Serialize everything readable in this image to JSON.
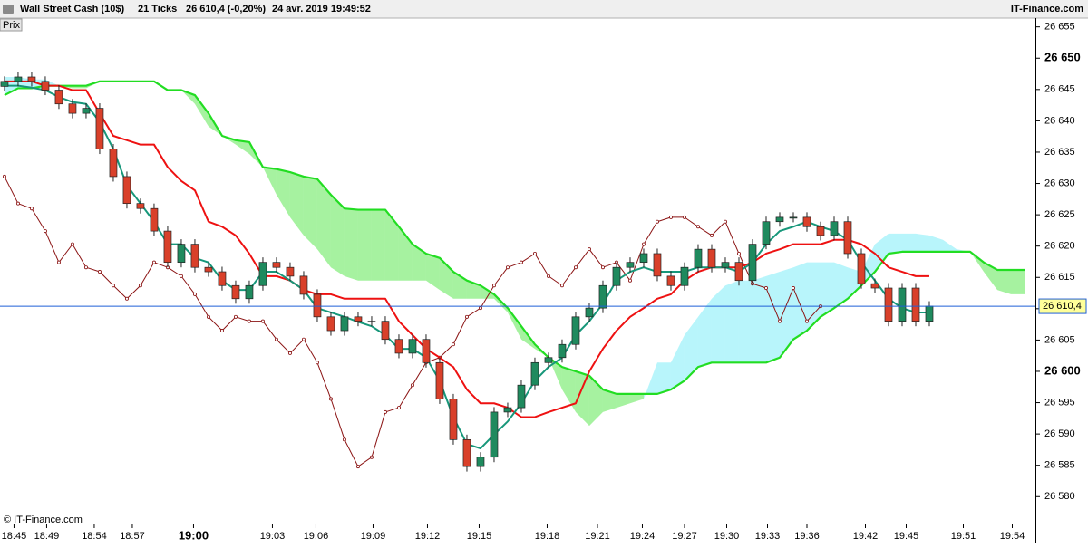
{
  "header": {
    "instrument": "Wall Street Cash (10$)",
    "interval": "21 Ticks",
    "quote": "26 610,4 (-0,20%)",
    "datetime": "24 avr. 2019 19:49:52",
    "brand": "IT-Finance.com",
    "panel": "Prix",
    "copyright": "© IT-Finance.com"
  },
  "chart_data": {
    "type": "candlestick",
    "xlim": [
      -0.33,
      75.8
    ],
    "xticks": [
      {
        "value": 0.7,
        "label": "18:45"
      },
      {
        "value": 3.1,
        "label": "18:49"
      },
      {
        "value": 6.6,
        "label": "18:54"
      },
      {
        "value": 9.4,
        "label": "18:57"
      },
      {
        "value": 13.9,
        "label": "19:00",
        "bold": true
      },
      {
        "value": 19.7,
        "label": "19:03"
      },
      {
        "value": 22.9,
        "label": "19:06"
      },
      {
        "value": 27.1,
        "label": "19:09"
      },
      {
        "value": 31.1,
        "label": "19:12"
      },
      {
        "value": 34.9,
        "label": "19:15"
      },
      {
        "value": 39.9,
        "label": "19:18"
      },
      {
        "value": 43.6,
        "label": "19:21"
      },
      {
        "value": 46.9,
        "label": "19:24"
      },
      {
        "value": 50,
        "label": "19:27"
      },
      {
        "value": 53.1,
        "label": "19:30"
      },
      {
        "value": 56.1,
        "label": "19:33"
      },
      {
        "value": 59,
        "label": "19:36"
      },
      {
        "value": 63.3,
        "label": "19:42"
      },
      {
        "value": 66.3,
        "label": "19:45"
      },
      {
        "value": 70.5,
        "label": "19:51"
      },
      {
        "value": 74.1,
        "label": "19:54"
      }
    ],
    "ylim": [
      26575.7,
      26656.4
    ],
    "yticks": [
      {
        "value": 26580,
        "label": "26 580"
      },
      {
        "value": 26585,
        "label": "26 585"
      },
      {
        "value": 26590,
        "label": "26 590"
      },
      {
        "value": 26595,
        "label": "26 595"
      },
      {
        "value": 26600,
        "label": "26 600",
        "bold": true
      },
      {
        "value": 26605,
        "label": "26 605"
      },
      {
        "value": 26610,
        "label": "26 610"
      },
      {
        "value": 26615,
        "label": "26 615"
      },
      {
        "value": 26620,
        "label": "26 620"
      },
      {
        "value": 26625,
        "label": "26 625"
      },
      {
        "value": 26630,
        "label": "26 630"
      },
      {
        "value": 26635,
        "label": "26 635"
      },
      {
        "value": 26640,
        "label": "26 640"
      },
      {
        "value": 26645,
        "label": "26 645"
      },
      {
        "value": 26650,
        "label": "26 650",
        "bold": true
      },
      {
        "value": 26655,
        "label": "26 655"
      }
    ],
    "last_price": {
      "value": 26610.4,
      "label": "26 610,4",
      "color": "#1f5fd6"
    },
    "candles": {
      "up_color": "#1f8a5e",
      "down_color": "#d9402a",
      "open": [
        26645.5,
        26646.3,
        26647.0,
        26646.3,
        26644.9,
        26642.7,
        26641.2,
        26642.0,
        26635.5,
        26631.1,
        26626.8,
        26626.0,
        26622.4,
        26617.4,
        26620.3,
        26616.6,
        26615.9,
        26613.7,
        26611.6,
        26613.7,
        26617.4,
        26616.6,
        26615.2,
        26612.3,
        26608.7,
        26606.5,
        26608.7,
        26608.0,
        26608.0,
        26605.1,
        26602.9,
        26605.1,
        26601.4,
        26595.6,
        26589.1,
        26584.8,
        26586.3,
        26593.5,
        26594.2,
        26597.8,
        26601.4,
        26602.2,
        26604.3,
        26608.7,
        26610.1,
        26613.7,
        26616.6,
        26617.4,
        26618.8,
        26615.2,
        26613.7,
        26616.6,
        26619.5,
        26616.6,
        26617.4,
        26614.5,
        26620.3,
        26623.9,
        26624.6,
        26624.6,
        26623.1,
        26621.7,
        26623.9,
        26618.8,
        26614.0,
        26613.3,
        26608.0,
        26613.3,
        26608.0
      ],
      "high": [
        26647.1,
        26647.8,
        26647.8,
        26647.1,
        26645.7,
        26643.5,
        26642.8,
        26642.8,
        26636.3,
        26631.9,
        26627.6,
        26626.8,
        26623.2,
        26621.1,
        26621.1,
        26617.4,
        26616.7,
        26614.5,
        26614.5,
        26618.2,
        26618.2,
        26617.4,
        26616.0,
        26613.1,
        26609.5,
        26609.5,
        26609.5,
        26608.8,
        26608.8,
        26605.9,
        26605.9,
        26605.9,
        26602.2,
        26596.4,
        26589.9,
        26587.1,
        26594.3,
        26595.0,
        26598.6,
        26602.2,
        26603.0,
        26605.1,
        26609.5,
        26610.9,
        26614.5,
        26617.4,
        26618.2,
        26619.6,
        26619.6,
        26616.0,
        26617.4,
        26620.3,
        26620.3,
        26618.2,
        26618.2,
        26621.1,
        26624.7,
        26625.4,
        26625.4,
        26625.4,
        26623.9,
        26624.7,
        26624.7,
        26619.6,
        26614.8,
        26614.1,
        26614.1,
        26614.1,
        26611.2
      ],
      "low": [
        26644.7,
        26645.5,
        26645.5,
        26644.1,
        26641.9,
        26640.4,
        26640.4,
        26634.7,
        26630.3,
        26626.0,
        26625.2,
        26621.6,
        26616.6,
        26616.6,
        26615.8,
        26615.1,
        26612.9,
        26610.8,
        26610.8,
        26612.9,
        26615.8,
        26614.4,
        26611.5,
        26607.9,
        26605.7,
        26605.7,
        26607.2,
        26607.2,
        26604.3,
        26602.1,
        26602.1,
        26600.6,
        26594.8,
        26588.3,
        26584.0,
        26584.0,
        26585.5,
        26592.7,
        26593.4,
        26597.0,
        26600.6,
        26601.4,
        26603.5,
        26607.9,
        26609.3,
        26612.9,
        26615.8,
        26616.6,
        26614.4,
        26612.9,
        26612.9,
        26615.8,
        26615.8,
        26615.8,
        26613.7,
        26613.7,
        26619.5,
        26623.1,
        26623.8,
        26622.3,
        26620.9,
        26620.9,
        26618.0,
        26613.2,
        26612.5,
        26607.2,
        26607.2,
        26607.2,
        26607.2
      ],
      "close": [
        26646.3,
        26647.0,
        26646.3,
        26644.9,
        26642.7,
        26641.2,
        26642.0,
        26635.5,
        26631.1,
        26626.8,
        26626.0,
        26622.4,
        26617.4,
        26620.3,
        26616.6,
        26615.9,
        26613.7,
        26611.6,
        26613.7,
        26617.4,
        26616.6,
        26615.2,
        26612.3,
        26608.7,
        26606.5,
        26608.7,
        26608.0,
        26608.0,
        26605.1,
        26602.9,
        26605.1,
        26601.4,
        26595.6,
        26589.1,
        26584.8,
        26586.3,
        26593.5,
        26594.2,
        26597.8,
        26601.4,
        26602.2,
        26604.3,
        26608.7,
        26610.1,
        26613.7,
        26616.6,
        26617.4,
        26618.8,
        26615.2,
        26613.7,
        26616.6,
        26619.5,
        26616.6,
        26617.4,
        26614.5,
        26620.3,
        26623.9,
        26624.6,
        26624.6,
        26623.1,
        26621.7,
        26623.9,
        26618.8,
        26614.0,
        26613.3,
        26608.0,
        26613.3,
        26608.0,
        26610.4
      ]
    },
    "cloud_colors": {
      "up": "#a6f2a0",
      "down": "#b8f5fb"
    },
    "senkou_a": {
      "color": "#22dd22",
      "values": [
        26644.1,
        26645.2,
        26645.2,
        26645.6,
        26645.6,
        26645.6,
        26645.6,
        26646.3,
        26646.3,
        26646.3,
        26646.3,
        26646.3,
        26644.9,
        26644.9,
        26644.1,
        26641.2,
        26637.6,
        26636.9,
        26636.6,
        26632.6,
        26632.3,
        26631.8,
        26631.1,
        26630.7,
        26628.2,
        26626.0,
        26625.8,
        26625.8,
        26625.8,
        26623.1,
        26620.3,
        26618.8,
        26618.1,
        26615.9,
        26614.5,
        26613.7,
        26612.3,
        26610.1,
        26607.2,
        26604.3,
        26602.2,
        26600.7,
        26600.0,
        26599.3,
        26597.1,
        26596.4,
        26596.4,
        26596.4,
        26596.4,
        26597.1,
        26598.5,
        26600.7,
        26601.4,
        26601.4,
        26601.4,
        26601.4,
        26601.4,
        26602.2,
        26605.1,
        26606.5,
        26608.7,
        26610.1,
        26611.6,
        26613.7,
        26615.9,
        26618.8,
        26619.1,
        26619.1,
        26619.1,
        26619.1,
        26619.1,
        26619.1,
        26617.4,
        26616.2,
        26616.2,
        26616.2
      ]
    },
    "senkou_b": {
      "values": [
        26647.0,
        26647.0,
        26646.6,
        26646.6,
        26645.6,
        26645.2,
        26645.2,
        26646.3,
        26646.3,
        26646.3,
        26646.3,
        26646.3,
        26644.9,
        26644.9,
        26642.7,
        26639.1,
        26637.6,
        26636.2,
        26634.7,
        26632.6,
        26628.2,
        26624.6,
        26621.7,
        26619.5,
        26616.6,
        26615.2,
        26614.5,
        26614.5,
        26614.5,
        26614.5,
        26614.5,
        26614.5,
        26613.0,
        26611.6,
        26611.6,
        26611.6,
        26611.6,
        26609.4,
        26605.1,
        26603.6,
        26602.2,
        26597.1,
        26593.5,
        26591.3,
        26593.5,
        26594.2,
        26594.9,
        26595.6,
        26601.4,
        26601.4,
        26605.8,
        26608.7,
        26611.6,
        26613.7,
        26614.5,
        26614.5,
        26615.2,
        26615.9,
        26616.6,
        26617.4,
        26617.4,
        26617.4,
        26616.6,
        26615.9,
        26620.3,
        26622.0,
        26622.0,
        26622.0,
        26621.7,
        26621.0,
        26619.5,
        26619.1,
        26615.9,
        26613.0,
        26612.3,
        26612.3
      ]
    },
    "tenkan": {
      "color": "#17977a",
      "values": [
        26645.6,
        26645.6,
        26645.3,
        26644.9,
        26643.8,
        26643.0,
        26642.7,
        26639.8,
        26635.5,
        26629.7,
        26626.8,
        26623.9,
        26620.3,
        26620.3,
        26618.1,
        26617.4,
        26614.5,
        26613.0,
        26613.0,
        26615.9,
        26615.9,
        26614.5,
        26613.0,
        26610.1,
        26609.4,
        26608.7,
        26607.9,
        26607.2,
        26605.8,
        26603.6,
        26603.6,
        26602.2,
        26598.5,
        26592.7,
        26588.4,
        26587.7,
        26589.9,
        26592.0,
        26594.9,
        26598.5,
        26600.7,
        26602.2,
        26605.8,
        26608.0,
        26610.8,
        26614.5,
        26615.9,
        26616.6,
        26615.9,
        26615.9,
        26615.9,
        26616.6,
        26616.6,
        26616.6,
        26615.9,
        26617.4,
        26620.3,
        26622.4,
        26623.1,
        26623.9,
        26623.1,
        26622.4,
        26621.0,
        26617.4,
        26614.5,
        26611.6,
        26610.1,
        26609.4,
        26609.4
      ]
    },
    "kijun": {
      "color": "#ee1111",
      "values": [
        26646.3,
        26646.3,
        26646.3,
        26645.6,
        26645.6,
        26644.9,
        26644.9,
        26641.2,
        26637.6,
        26636.9,
        26636.2,
        26636.2,
        26632.6,
        26630.4,
        26628.9,
        26623.9,
        26623.1,
        26621.7,
        26618.8,
        26615.2,
        26615.2,
        26614.5,
        26613.0,
        26612.3,
        26612.3,
        26611.6,
        26611.6,
        26611.6,
        26611.6,
        26608.0,
        26605.8,
        26603.6,
        26602.2,
        26600.7,
        26597.1,
        26594.9,
        26594.9,
        26594.2,
        26592.7,
        26592.7,
        26593.5,
        26594.2,
        26594.9,
        26600.0,
        26603.6,
        26606.5,
        26608.7,
        26610.1,
        26611.6,
        26612.3,
        26614.5,
        26615.9,
        26616.6,
        26616.6,
        26616.6,
        26617.4,
        26618.8,
        26619.5,
        26620.3,
        26620.3,
        26620.3,
        26621.0,
        26621.0,
        26620.3,
        26618.8,
        26616.6,
        26615.9,
        26615.2,
        26615.2
      ]
    },
    "chikou": {
      "color": "#8b1414",
      "values": [
        26631.1,
        26626.8,
        26626.0,
        26622.4,
        26617.4,
        26620.3,
        26616.6,
        26615.9,
        26613.7,
        26611.6,
        26613.7,
        26617.4,
        26616.6,
        26615.2,
        26612.3,
        26608.7,
        26606.5,
        26608.7,
        26608.0,
        26608.0,
        26605.1,
        26602.9,
        26605.1,
        26601.4,
        26595.6,
        26589.1,
        26584.8,
        26586.3,
        26593.5,
        26594.2,
        26597.8,
        26601.4,
        26602.2,
        26604.3,
        26608.7,
        26610.1,
        26613.7,
        26616.6,
        26617.4,
        26618.8,
        26615.2,
        26613.7,
        26616.6,
        26619.5,
        26616.6,
        26617.4,
        26614.5,
        26620.3,
        26623.9,
        26624.6,
        26624.6,
        26623.1,
        26621.7,
        26623.9,
        26618.8,
        26614.0,
        26613.3,
        26608.0,
        26613.3,
        26608.0,
        26610.4
      ]
    }
  }
}
